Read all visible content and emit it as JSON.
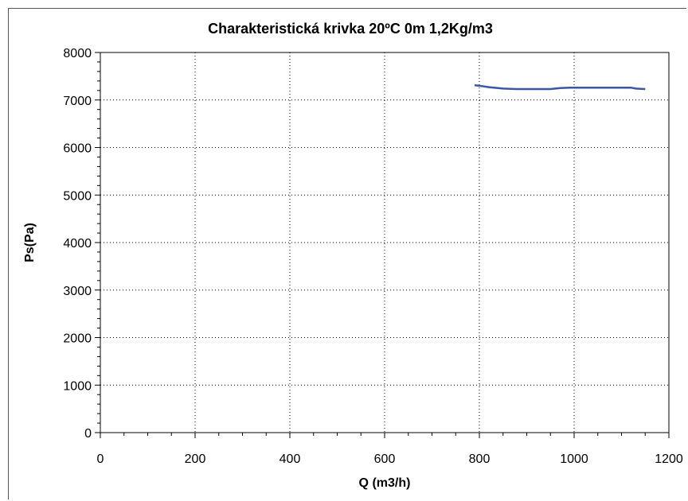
{
  "chart_data": {
    "type": "line",
    "title": "Charakteristická krivka 20ºC 0m 1,2Kg/m3",
    "xlabel": "Q (m3/h)",
    "ylabel": "Ps(Pa)",
    "xlim": [
      0,
      1200
    ],
    "ylim": [
      0,
      8000
    ],
    "xticks": [
      0,
      200,
      400,
      600,
      800,
      1000,
      1200
    ],
    "yticks": [
      0,
      1000,
      2000,
      3000,
      4000,
      5000,
      6000,
      7000,
      8000
    ],
    "xtick_labels": [
      "0",
      "200",
      "400",
      "600",
      "800",
      "1000",
      "1200"
    ],
    "ytick_labels": [
      "0",
      "1000",
      "2000",
      "3000",
      "4000",
      "5000",
      "6000",
      "7000",
      "8000"
    ],
    "grid": true,
    "series": [
      {
        "color": "#3a57a6",
        "x": [
          790,
          800,
          820,
          850,
          880,
          900,
          920,
          950,
          970,
          990,
          1020,
          1050,
          1080,
          1100,
          1120,
          1130,
          1150
        ],
        "y": [
          7310,
          7300,
          7270,
          7240,
          7230,
          7230,
          7230,
          7230,
          7250,
          7260,
          7260,
          7260,
          7260,
          7260,
          7260,
          7240,
          7230
        ]
      }
    ]
  }
}
